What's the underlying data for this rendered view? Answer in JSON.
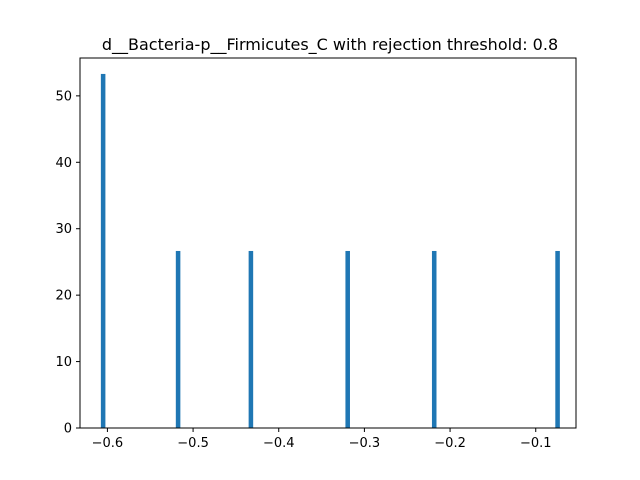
{
  "chart_data": {
    "type": "bar",
    "title": "d__Bacteria-p__Firmicutes_C with rejection threshold: 0.8",
    "xlabel": "",
    "ylabel": "",
    "bar_color": "#1f77b4",
    "xlim": [
      -0.632,
      -0.053
    ],
    "ylim": [
      0,
      55.7
    ],
    "grid": false,
    "bar_width": 0.0053,
    "x": [
      -0.605,
      -0.5175,
      -0.4325,
      -0.3195,
      -0.2185,
      -0.0745
    ],
    "values": [
      53.3,
      26.65,
      26.65,
      26.65,
      26.65,
      26.65
    ],
    "xticks": [
      -0.6,
      -0.5,
      -0.4,
      -0.3,
      -0.2,
      -0.1
    ],
    "xtick_labels": [
      "−0.6",
      "−0.5",
      "−0.4",
      "−0.3",
      "−0.2",
      "−0.1"
    ],
    "yticks": [
      0,
      10,
      20,
      30,
      40,
      50
    ],
    "ytick_labels": [
      "0",
      "10",
      "20",
      "30",
      "40",
      "50"
    ]
  }
}
